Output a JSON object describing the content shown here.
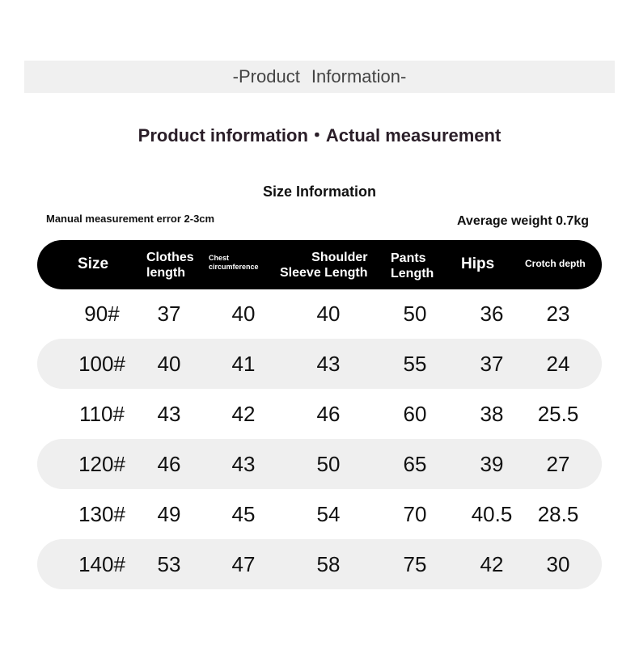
{
  "banner_title": "-Product Information-",
  "subtitle": "Product information・Actual measurement",
  "section_title": "Size Information",
  "note": "Manual measurement error 2-3cm",
  "weight": "Average weight 0.7kg",
  "headers": {
    "size": "Size",
    "clothes_1": "Clothes",
    "clothes_2": "length",
    "chest_1": "Chest",
    "chest_2": "circumference",
    "shoulder_1": "Shoulder",
    "shoulder_2": "Sleeve Length",
    "pants_1": "Pants",
    "pants_2": "Length",
    "hips": "Hips",
    "crotch": "Crotch depth"
  },
  "rows": [
    [
      "90#",
      "37",
      "40",
      "40",
      "50",
      "36",
      "23"
    ],
    [
      "100#",
      "40",
      "41",
      "43",
      "55",
      "37",
      "24"
    ],
    [
      "110#",
      "43",
      "42",
      "46",
      "60",
      "38",
      "25.5"
    ],
    [
      "120#",
      "46",
      "43",
      "50",
      "65",
      "39",
      "27"
    ],
    [
      "130#",
      "49",
      "45",
      "54",
      "70",
      "40.5",
      "28.5"
    ],
    [
      "140#",
      "53",
      "47",
      "58",
      "75",
      "42",
      "30"
    ]
  ]
}
